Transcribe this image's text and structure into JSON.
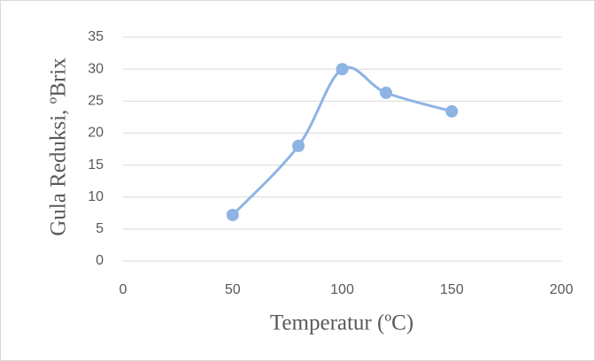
{
  "chart_data": {
    "type": "scatter",
    "x_label": "Temperatur (ºC)",
    "y_label": "Gula Reduksi, ºBrix",
    "x": [
      50,
      80,
      100,
      120,
      150
    ],
    "values": [
      7.2,
      18,
      30,
      26.3,
      23.4
    ],
    "color": "#8db4e2",
    "xlim": [
      0,
      200
    ],
    "xticks": [
      0,
      50,
      100,
      150,
      200
    ],
    "ylim": [
      0,
      35
    ],
    "yticks": [
      0,
      5,
      10,
      15,
      20,
      25,
      30,
      35
    ],
    "grid": true,
    "smooth": true
  }
}
